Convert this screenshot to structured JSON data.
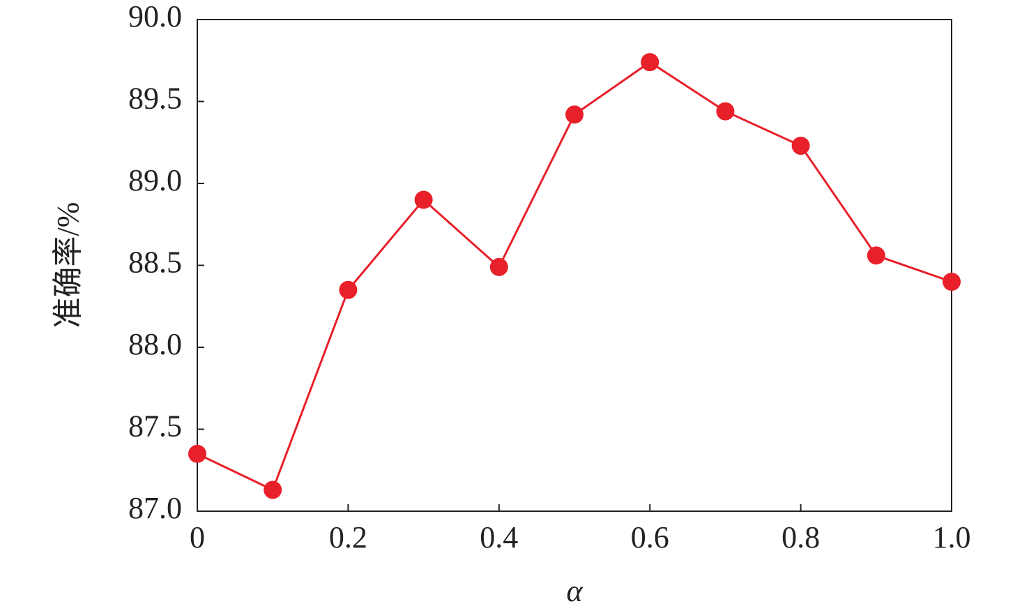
{
  "chart_data": {
    "type": "line",
    "x_label": "α",
    "y_label": "准确率/%",
    "x": [
      0,
      0.1,
      0.2,
      0.3,
      0.4,
      0.5,
      0.6,
      0.7,
      0.8,
      0.9,
      1.0
    ],
    "series": [
      {
        "name": "准确率",
        "color": "#e8202a",
        "values": [
          87.35,
          87.13,
          88.35,
          88.9,
          88.49,
          89.42,
          89.74,
          89.44,
          89.23,
          88.56,
          88.4
        ]
      }
    ],
    "xlim": [
      0,
      1
    ],
    "xticks": [
      0,
      0.2,
      0.4,
      0.6,
      0.8,
      {
        "value": 1,
        "label": "1.0"
      }
    ],
    "ylim": [
      87,
      90
    ],
    "yticks": [
      {
        "value": 87,
        "label": "87.0"
      },
      {
        "value": 87.5,
        "label": "87.5"
      },
      {
        "value": 88,
        "label": "88.0"
      },
      {
        "value": 88.5,
        "label": "88.5"
      },
      {
        "value": 89,
        "label": "89.0"
      },
      {
        "value": 89.5,
        "label": "89.5"
      },
      {
        "value": 90,
        "label": "90.0"
      }
    ],
    "grid": false
  }
}
